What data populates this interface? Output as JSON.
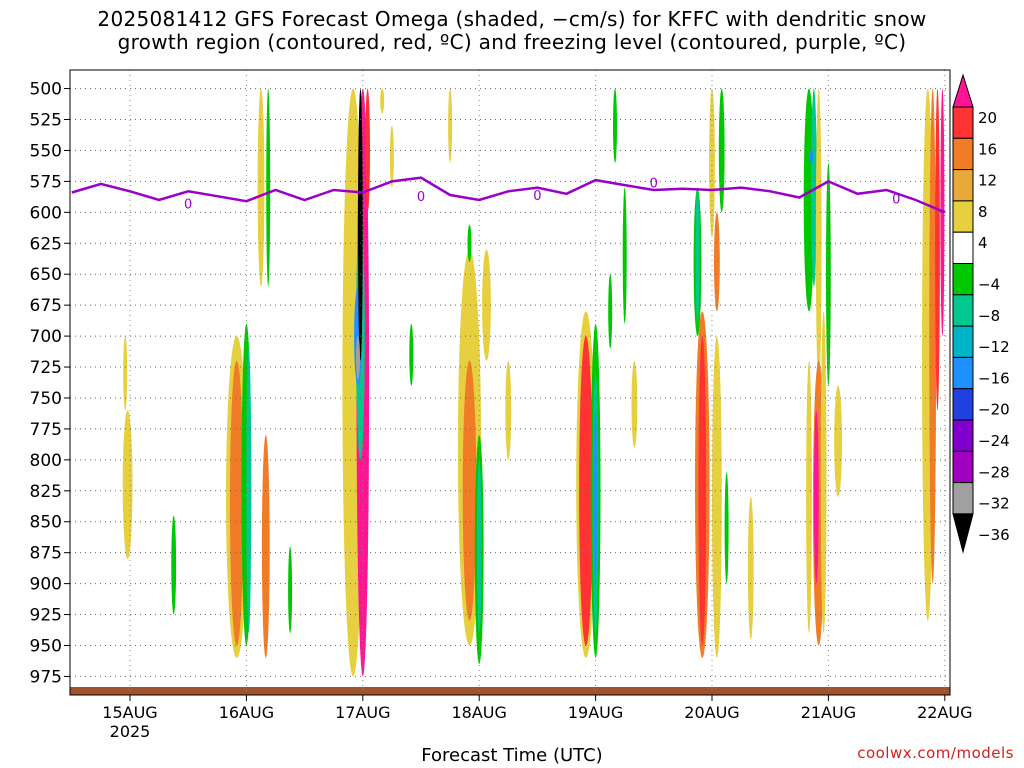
{
  "title": {
    "line1": "2025081412 GFS Forecast Omega (shaded, −cm/s) for KFFC with dendritic snow",
    "line2": "growth region (contoured, red, ºC) and freezing level (contoured, purple, ºC)"
  },
  "credit": "coolwx.com/models",
  "chart_data": {
    "type": "heatmap",
    "xlabel": "Forecast Time (UTC)",
    "ylabel": "",
    "x_ticks": [
      "15AUG",
      "16AUG",
      "17AUG",
      "18AUG",
      "19AUG",
      "20AUG",
      "21AUG",
      "22AUG"
    ],
    "x_year_label": "2025",
    "x_range_hours": [
      0,
      168
    ],
    "x_axis_start_offset_hours": -12,
    "y_ticks": [
      500,
      525,
      550,
      575,
      600,
      625,
      650,
      675,
      700,
      725,
      750,
      775,
      800,
      825,
      850,
      875,
      900,
      925,
      950,
      975
    ],
    "y_range_hpa": [
      990,
      485
    ],
    "grid": "dotted",
    "colorbar": {
      "ticks": [
        "20",
        "16",
        "12",
        "8",
        "4",
        "−4",
        "−8",
        "−12",
        "−16",
        "−20",
        "−24",
        "−28",
        "−32",
        "−36"
      ],
      "colors": [
        "#ff1493",
        "#ff3333",
        "#f07c28",
        "#e8a83a",
        "#e6d040",
        "#ffffff",
        "#00c800",
        "#00c890",
        "#00b4c8",
        "#1e90ff",
        "#2040e0",
        "#8000d0",
        "#a000c0",
        "#a0a0a0",
        "#000000"
      ]
    },
    "freezing_level": {
      "label": "0",
      "color": "#9a00c8",
      "hours": [
        -12,
        -6,
        0,
        6,
        12,
        18,
        24,
        30,
        36,
        42,
        48,
        54,
        60,
        66,
        72,
        78,
        84,
        90,
        96,
        102,
        108,
        114,
        120,
        126,
        132,
        138,
        144,
        150,
        156,
        162,
        168
      ],
      "pressure_hpa": [
        584,
        577,
        583,
        590,
        583,
        587,
        591,
        582,
        590,
        582,
        584,
        575,
        572,
        586,
        590,
        583,
        580,
        585,
        574,
        578,
        582,
        581,
        582,
        580,
        583,
        588,
        575,
        585,
        582,
        590,
        600
      ]
    },
    "surface_color": "#a0522d"
  }
}
